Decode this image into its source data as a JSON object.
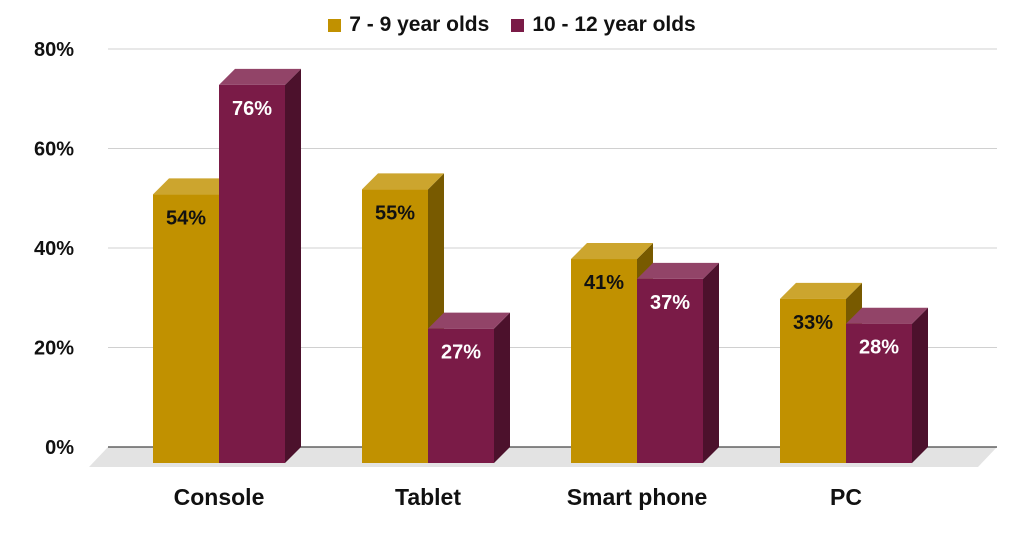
{
  "chart_data": {
    "type": "bar",
    "style": "3d-clustered",
    "categories": [
      "Console",
      "Tablet",
      "Smart phone",
      "PC"
    ],
    "series": [
      {
        "name": "7 - 9 year olds",
        "values": [
          54,
          55,
          41,
          33
        ],
        "color": "#C19100",
        "label_color": "#111111"
      },
      {
        "name": "10 - 12 year olds",
        "values": [
          76,
          27,
          37,
          28
        ],
        "color": "#7A1B47",
        "label_color": "#ffffff"
      }
    ],
    "ylim": [
      0,
      80
    ],
    "yticks": [
      0,
      20,
      40,
      60,
      80
    ],
    "ytick_labels": [
      "0%",
      "20%",
      "40%",
      "60%",
      "80%"
    ],
    "value_suffix": "%",
    "grid": true,
    "legend_position": "top-center",
    "title": "",
    "xlabel": "",
    "ylabel": ""
  }
}
